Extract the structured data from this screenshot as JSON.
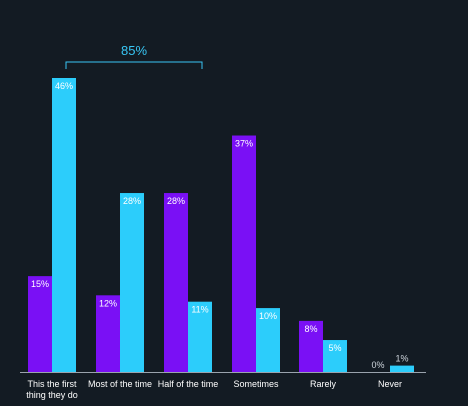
{
  "chart_data": {
    "type": "bar",
    "categories": [
      [
        "This the first",
        "thing they do"
      ],
      [
        "Most of the time"
      ],
      [
        "Half of the time"
      ],
      [
        "Sometimes"
      ],
      [
        "Rarely"
      ],
      [
        "Never"
      ]
    ],
    "series": [
      {
        "values": [
          15,
          12,
          28,
          37,
          8,
          0
        ],
        "labels": [
          "15%",
          "12%",
          "28%",
          "37%",
          "8%",
          "0%"
        ],
        "color": "#7a10f5"
      },
      {
        "values": [
          46,
          28,
          11,
          10,
          5,
          1
        ],
        "labels": [
          "46%",
          "28%",
          "11%",
          "10%",
          "5%",
          "1%"
        ],
        "color": "#2ccdfb"
      }
    ],
    "ylim": [
      0,
      46
    ],
    "annotation": {
      "text": "85%",
      "spans_categories": [
        0,
        2
      ],
      "color": "#38c6f4"
    },
    "grid": false,
    "legend": "none",
    "background": "#131b23",
    "axis_color": "#9aa3ad"
  }
}
